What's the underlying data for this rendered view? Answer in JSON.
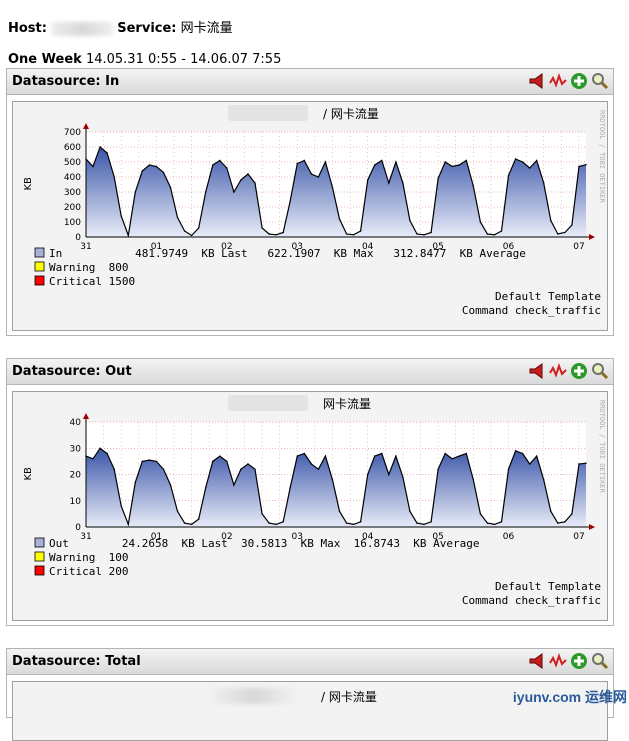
{
  "header": {
    "host_label": "Host:",
    "service_label": "Service:",
    "service_value": "网卡流量",
    "period_label": "One Week",
    "period_range": "14.05.31 0:55 - 14.06.07 7:55"
  },
  "panels": [
    {
      "title": "Datasource: In",
      "graph_title": "/ 网卡流量",
      "side_text": "RRDTOOL / TOBI OETIKER",
      "legend": [
        {
          "swatch": "#a9b0d6",
          "text": "In           481.9749  KB Last   622.1907  KB Max   312.8477  KB Average"
        },
        {
          "swatch": "#ffff00",
          "text": "Warning  800"
        },
        {
          "swatch": "#ff0000",
          "text": "Critical 1500"
        }
      ],
      "footer": [
        "Default Template",
        "Command check_traffic"
      ]
    },
    {
      "title": "Datasource: Out",
      "graph_title": "网卡流量",
      "side_text": "RRDTOOL / TOBI OETIKER",
      "legend": [
        {
          "swatch": "#a9b0d6",
          "text": "Out        24.2658  KB Last  30.5813  KB Max  16.8743  KB Average"
        },
        {
          "swatch": "#ffff00",
          "text": "Warning  100"
        },
        {
          "swatch": "#ff0000",
          "text": "Critical 200"
        }
      ],
      "footer": [
        "Default Template",
        "Command check_traffic"
      ]
    },
    {
      "title": "Datasource: Total",
      "graph_title": "/ 网卡流量"
    }
  ],
  "watermark": "iyunv.com 运维网",
  "colors": {
    "area_top": "#3a55a8",
    "area_bottom": "#e8ecf8",
    "line": "#000000",
    "grid": "#e07070",
    "axis_arrow": "#a00000"
  },
  "chart_data": [
    {
      "type": "area",
      "title": "/ 网卡流量",
      "ylabel": "KB",
      "xlabel": "",
      "ylim": [
        0,
        700
      ],
      "y_ticks": [
        0,
        100,
        200,
        300,
        400,
        500,
        600,
        700
      ],
      "x_ticks": [
        "31",
        "01",
        "02",
        "03",
        "04",
        "05",
        "06",
        "07"
      ],
      "grid": true,
      "series": [
        {
          "name": "In",
          "x": [
            0,
            0.1,
            0.2,
            0.3,
            0.4,
            0.5,
            0.6,
            0.7,
            0.8,
            0.9,
            1,
            1.1,
            1.2,
            1.3,
            1.4,
            1.5,
            1.6,
            1.7,
            1.8,
            1.9,
            2,
            2.1,
            2.2,
            2.3,
            2.4,
            2.5,
            2.6,
            2.7,
            2.8,
            2.9,
            3,
            3.1,
            3.2,
            3.3,
            3.4,
            3.5,
            3.6,
            3.7,
            3.8,
            3.9,
            4,
            4.1,
            4.2,
            4.3,
            4.4,
            4.5,
            4.6,
            4.7,
            4.8,
            4.9,
            5,
            5.1,
            5.2,
            5.3,
            5.4,
            5.5,
            5.6,
            5.7,
            5.8,
            5.9,
            6,
            6.1,
            6.2,
            6.3,
            6.4,
            6.5,
            6.6,
            6.7,
            6.8,
            6.9,
            7,
            7.1
          ],
          "values": [
            520,
            470,
            600,
            560,
            400,
            140,
            10,
            300,
            440,
            480,
            470,
            430,
            330,
            130,
            40,
            10,
            60,
            300,
            480,
            510,
            460,
            300,
            380,
            420,
            360,
            60,
            20,
            15,
            30,
            240,
            490,
            510,
            420,
            400,
            500,
            330,
            120,
            20,
            15,
            40,
            380,
            480,
            510,
            360,
            500,
            360,
            110,
            20,
            15,
            30,
            390,
            500,
            470,
            480,
            510,
            340,
            100,
            20,
            15,
            40,
            410,
            520,
            500,
            460,
            510,
            360,
            110,
            20,
            30,
            80,
            470,
            482
          ]
        }
      ]
    },
    {
      "type": "area",
      "title": "网卡流量",
      "ylabel": "KB",
      "xlabel": "",
      "ylim": [
        0,
        40
      ],
      "y_ticks": [
        0,
        10,
        20,
        30,
        40
      ],
      "x_ticks": [
        "31",
        "01",
        "02",
        "03",
        "04",
        "05",
        "06",
        "07"
      ],
      "grid": true,
      "series": [
        {
          "name": "Out",
          "x": [
            0,
            0.1,
            0.2,
            0.3,
            0.4,
            0.5,
            0.6,
            0.7,
            0.8,
            0.9,
            1,
            1.1,
            1.2,
            1.3,
            1.4,
            1.5,
            1.6,
            1.7,
            1.8,
            1.9,
            2,
            2.1,
            2.2,
            2.3,
            2.4,
            2.5,
            2.6,
            2.7,
            2.8,
            2.9,
            3,
            3.1,
            3.2,
            3.3,
            3.4,
            3.5,
            3.6,
            3.7,
            3.8,
            3.9,
            4,
            4.1,
            4.2,
            4.3,
            4.4,
            4.5,
            4.6,
            4.7,
            4.8,
            4.9,
            5,
            5.1,
            5.2,
            5.3,
            5.4,
            5.5,
            5.6,
            5.7,
            5.8,
            5.9,
            6,
            6.1,
            6.2,
            6.3,
            6.4,
            6.5,
            6.6,
            6.7,
            6.8,
            6.9,
            7,
            7.1
          ],
          "values": [
            27,
            26,
            30,
            28,
            22,
            8,
            1,
            17,
            25,
            25.5,
            25,
            22,
            16,
            6,
            1.5,
            1,
            3,
            15,
            25,
            27,
            25,
            16,
            22,
            24,
            22,
            5,
            1.5,
            1,
            2,
            15,
            27,
            28,
            24,
            22,
            27,
            18,
            6,
            1.5,
            1,
            2,
            20,
            27,
            28,
            20,
            27,
            19,
            6,
            1.5,
            1,
            2,
            22,
            28,
            26,
            27,
            28,
            18,
            5,
            1.5,
            1,
            2,
            22,
            29,
            28,
            24,
            27,
            18,
            6,
            1.5,
            2,
            5,
            24,
            24.3
          ]
        }
      ]
    }
  ]
}
